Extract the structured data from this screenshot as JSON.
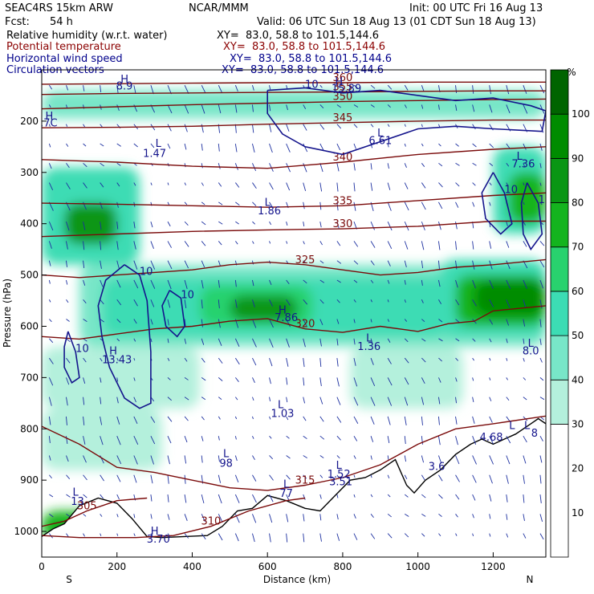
{
  "header": {
    "model": "SEAC4RS 15km ARW",
    "institution": "NCAR/MMM",
    "init": "Init: 00 UTC Fri 16 Aug 13",
    "fcst_label": "Fcst:",
    "fcst_value": "54 h",
    "valid": "Valid: 06 UTC Sun 18 Aug 13 (01 CDT Sun 18 Aug 13)"
  },
  "fields": [
    {
      "name": "Relative humidity (w.r.t. water)",
      "xy": "XY=  83.0, 58.8 to 101.5,144.6",
      "color": "#000000"
    },
    {
      "name": "Potential temperature",
      "xy": "XY=  83.0, 58.8 to 101.5,144.6",
      "color": "#8b0000"
    },
    {
      "name": "Horizontal wind speed",
      "xy": "XY=  83.0, 58.8 to 101.5,144.6",
      "color": "#00008b"
    },
    {
      "name": "Circulation vectors",
      "xy": "XY=  83.0, 58.8 to 101.5,144.6",
      "color": "#00008b"
    }
  ],
  "chart_data": {
    "type": "heatmap",
    "xlabel": "Distance (km)",
    "ylabel": "Pressure (hPa)",
    "xlim": [
      0,
      1340
    ],
    "ylim": [
      1050,
      100
    ],
    "x_ticks": [
      0,
      200,
      400,
      600,
      800,
      1000,
      1200
    ],
    "y_ticks": [
      200,
      300,
      400,
      500,
      600,
      700,
      800,
      900,
      1000
    ],
    "x_end_labels": [
      "S",
      "N"
    ],
    "colorbar": {
      "unit": "%",
      "ticks": [
        10,
        20,
        30,
        40,
        50,
        60,
        70,
        80,
        90,
        100
      ],
      "levels": [
        {
          "from": 0,
          "to": 30,
          "color": "#ffffff"
        },
        {
          "from": 30,
          "to": 40,
          "color": "#b4f0dc"
        },
        {
          "from": 40,
          "to": 50,
          "color": "#78e6c8"
        },
        {
          "from": 50,
          "to": 60,
          "color": "#3cdcb4"
        },
        {
          "from": 60,
          "to": 70,
          "color": "#28d26e"
        },
        {
          "from": 70,
          "to": 80,
          "color": "#14b41e"
        },
        {
          "from": 80,
          "to": 90,
          "color": "#0a9614"
        },
        {
          "from": 90,
          "to": 100,
          "color": "#008c00"
        },
        {
          "from": 100,
          "to": 110,
          "color": "#006400"
        }
      ]
    },
    "theta_contours": [
      {
        "label": "310",
        "points": [
          [
            0,
            1008
          ],
          [
            100,
            1012
          ],
          [
            250,
            1012
          ],
          [
            350,
            1008
          ],
          [
            450,
            990
          ],
          [
            550,
            960
          ],
          [
            650,
            940
          ],
          [
            700,
            935
          ]
        ]
      },
      {
        "label": "305",
        "points": [
          [
            0,
            990
          ],
          [
            60,
            980
          ],
          [
            120,
            960
          ],
          [
            200,
            940
          ],
          [
            280,
            935
          ]
        ]
      },
      {
        "label": "315",
        "points": [
          [
            0,
            795
          ],
          [
            100,
            830
          ],
          [
            200,
            875
          ],
          [
            300,
            885
          ],
          [
            400,
            900
          ],
          [
            500,
            915
          ],
          [
            600,
            920
          ],
          [
            700,
            910
          ],
          [
            800,
            895
          ],
          [
            900,
            870
          ],
          [
            1000,
            830
          ],
          [
            1100,
            800
          ],
          [
            1200,
            790
          ],
          [
            1340,
            775
          ]
        ]
      },
      {
        "label": "320",
        "points": [
          [
            0,
            620
          ],
          [
            100,
            625
          ],
          [
            200,
            615
          ],
          [
            300,
            605
          ],
          [
            400,
            600
          ],
          [
            500,
            590
          ],
          [
            600,
            585
          ],
          [
            700,
            605
          ],
          [
            800,
            612
          ],
          [
            900,
            600
          ],
          [
            1000,
            610
          ],
          [
            1080,
            595
          ],
          [
            1150,
            590
          ],
          [
            1200,
            570
          ],
          [
            1340,
            560
          ]
        ]
      },
      {
        "label": "325",
        "points": [
          [
            0,
            500
          ],
          [
            100,
            505
          ],
          [
            200,
            500
          ],
          [
            300,
            495
          ],
          [
            400,
            490
          ],
          [
            500,
            480
          ],
          [
            600,
            475
          ],
          [
            700,
            480
          ],
          [
            800,
            490
          ],
          [
            900,
            500
          ],
          [
            1000,
            495
          ],
          [
            1100,
            485
          ],
          [
            1200,
            480
          ],
          [
            1340,
            470
          ]
        ]
      },
      {
        "label": "330",
        "points": [
          [
            0,
            425
          ],
          [
            200,
            420
          ],
          [
            400,
            415
          ],
          [
            600,
            412
          ],
          [
            800,
            410
          ],
          [
            1000,
            405
          ],
          [
            1200,
            395
          ],
          [
            1340,
            395
          ]
        ]
      },
      {
        "label": "335",
        "points": [
          [
            0,
            360
          ],
          [
            200,
            362
          ],
          [
            400,
            365
          ],
          [
            600,
            368
          ],
          [
            800,
            365
          ],
          [
            1000,
            355
          ],
          [
            1200,
            345
          ],
          [
            1340,
            340
          ]
        ]
      },
      {
        "label": "340",
        "points": [
          [
            0,
            275
          ],
          [
            200,
            280
          ],
          [
            400,
            288
          ],
          [
            600,
            292
          ],
          [
            800,
            280
          ],
          [
            1000,
            265
          ],
          [
            1200,
            255
          ],
          [
            1340,
            250
          ]
        ]
      },
      {
        "label": "345",
        "points": [
          [
            0,
            213
          ],
          [
            200,
            212
          ],
          [
            400,
            210
          ],
          [
            600,
            206
          ],
          [
            800,
            203
          ],
          [
            1000,
            200
          ],
          [
            1200,
            198
          ],
          [
            1340,
            198
          ]
        ]
      },
      {
        "label": "350",
        "points": [
          [
            0,
            176
          ],
          [
            200,
            172
          ],
          [
            400,
            168
          ],
          [
            600,
            165
          ],
          [
            800,
            162
          ],
          [
            1000,
            160
          ],
          [
            1200,
            158
          ],
          [
            1340,
            157
          ]
        ]
      },
      {
        "label": "355",
        "points": [
          [
            0,
            148
          ],
          [
            200,
            146
          ],
          [
            400,
            145
          ],
          [
            600,
            144
          ],
          [
            800,
            143
          ],
          [
            1000,
            142
          ],
          [
            1200,
            141
          ],
          [
            1340,
            141
          ]
        ]
      },
      {
        "label": "360",
        "points": [
          [
            0,
            128
          ],
          [
            200,
            127
          ],
          [
            400,
            126
          ],
          [
            600,
            125
          ],
          [
            800,
            125
          ],
          [
            1000,
            124
          ],
          [
            1200,
            124
          ],
          [
            1340,
            124
          ]
        ]
      }
    ],
    "wind_contours": [
      {
        "label": "10",
        "points": [
          [
            220,
            480
          ],
          [
            260,
            500
          ],
          [
            280,
            550
          ],
          [
            290,
            650
          ],
          [
            290,
            750
          ],
          [
            260,
            760
          ],
          [
            220,
            740
          ],
          [
            180,
            680
          ],
          [
            160,
            620
          ],
          [
            150,
            560
          ],
          [
            170,
            510
          ],
          [
            220,
            480
          ]
        ]
      },
      {
        "label": "10",
        "points": [
          [
            70,
            610
          ],
          [
            90,
            650
          ],
          [
            100,
            700
          ],
          [
            80,
            710
          ],
          [
            60,
            680
          ],
          [
            60,
            640
          ],
          [
            70,
            610
          ]
        ]
      },
      {
        "label": "10",
        "points": [
          [
            340,
            530
          ],
          [
            370,
            545
          ],
          [
            380,
            600
          ],
          [
            360,
            620
          ],
          [
            330,
            600
          ],
          [
            320,
            560
          ],
          [
            340,
            530
          ]
        ]
      },
      {
        "label": "10",
        "points": [
          [
            600,
            140
          ],
          [
            700,
            135
          ],
          [
            800,
            145
          ],
          [
            900,
            140
          ],
          [
            1000,
            150
          ],
          [
            1100,
            160
          ],
          [
            1200,
            155
          ],
          [
            1300,
            170
          ],
          [
            1340,
            180
          ],
          [
            1330,
            220
          ],
          [
            1200,
            215
          ],
          [
            1100,
            210
          ],
          [
            1000,
            215
          ],
          [
            900,
            240
          ],
          [
            800,
            265
          ],
          [
            700,
            250
          ],
          [
            640,
            225
          ],
          [
            600,
            185
          ],
          [
            600,
            140
          ]
        ]
      },
      {
        "label": "10",
        "points": [
          [
            1200,
            300
          ],
          [
            1230,
            340
          ],
          [
            1250,
            400
          ],
          [
            1220,
            420
          ],
          [
            1180,
            390
          ],
          [
            1170,
            340
          ],
          [
            1200,
            300
          ]
        ]
      },
      {
        "label": "10",
        "points": [
          [
            1290,
            320
          ],
          [
            1320,
            360
          ],
          [
            1330,
            420
          ],
          [
            1300,
            450
          ],
          [
            1280,
            420
          ],
          [
            1275,
            360
          ],
          [
            1290,
            320
          ]
        ]
      }
    ],
    "annotations": [
      {
        "text": "H",
        "x": 220,
        "y": 125
      },
      {
        "text": "8.9",
        "x": 220,
        "y": 138
      },
      {
        "text": "H",
        "x": 20,
        "y": 197
      },
      {
        "text": "4.7C",
        "x": 10,
        "y": 210
      },
      {
        "text": "L",
        "x": 310,
        "y": 250
      },
      {
        "text": "1.47",
        "x": 300,
        "y": 270
      },
      {
        "text": "H",
        "x": 790,
        "y": 130
      },
      {
        "text": "15.89",
        "x": 810,
        "y": 143
      },
      {
        "text": "L",
        "x": 900,
        "y": 230
      },
      {
        "text": "6.61",
        "x": 900,
        "y": 245
      },
      {
        "text": "L",
        "x": 1270,
        "y": 275
      },
      {
        "text": "7.36",
        "x": 1280,
        "y": 290
      },
      {
        "text": "L",
        "x": 600,
        "y": 365
      },
      {
        "text": "1.86",
        "x": 605,
        "y": 382
      },
      {
        "text": "H",
        "x": 640,
        "y": 575
      },
      {
        "text": "7.86",
        "x": 650,
        "y": 590
      },
      {
        "text": "L",
        "x": 870,
        "y": 630
      },
      {
        "text": "1.36",
        "x": 870,
        "y": 646
      },
      {
        "text": "H",
        "x": 190,
        "y": 655
      },
      {
        "text": "13.43",
        "x": 200,
        "y": 672
      },
      {
        "text": "L",
        "x": 1300,
        "y": 640
      },
      {
        "text": "8.0",
        "x": 1300,
        "y": 655
      },
      {
        "text": "L",
        "x": 635,
        "y": 760
      },
      {
        "text": "1.03",
        "x": 640,
        "y": 777
      },
      {
        "text": "L",
        "x": 1250,
        "y": 800
      },
      {
        "text": "4.68",
        "x": 1195,
        "y": 823
      },
      {
        "text": "L",
        "x": 1290,
        "y": 800
      },
      {
        "text": "8",
        "x": 1310,
        "y": 815
      },
      {
        "text": "L",
        "x": 490,
        "y": 855
      },
      {
        "text": "98",
        "x": 490,
        "y": 874
      },
      {
        "text": "L",
        "x": 790,
        "y": 878
      },
      {
        "text": "1.52",
        "x": 790,
        "y": 895
      },
      {
        "text": "3.51",
        "x": 795,
        "y": 910
      },
      {
        "text": "3.6",
        "x": 1050,
        "y": 880
      },
      {
        "text": "L",
        "x": 650,
        "y": 915
      },
      {
        "text": "77",
        "x": 650,
        "y": 933
      },
      {
        "text": "L",
        "x": 90,
        "y": 930
      },
      {
        "text": "13",
        "x": 95,
        "y": 948
      },
      {
        "text": "H",
        "x": 300,
        "y": 1006
      },
      {
        "text": "3.70",
        "x": 310,
        "y": 1022
      }
    ]
  }
}
